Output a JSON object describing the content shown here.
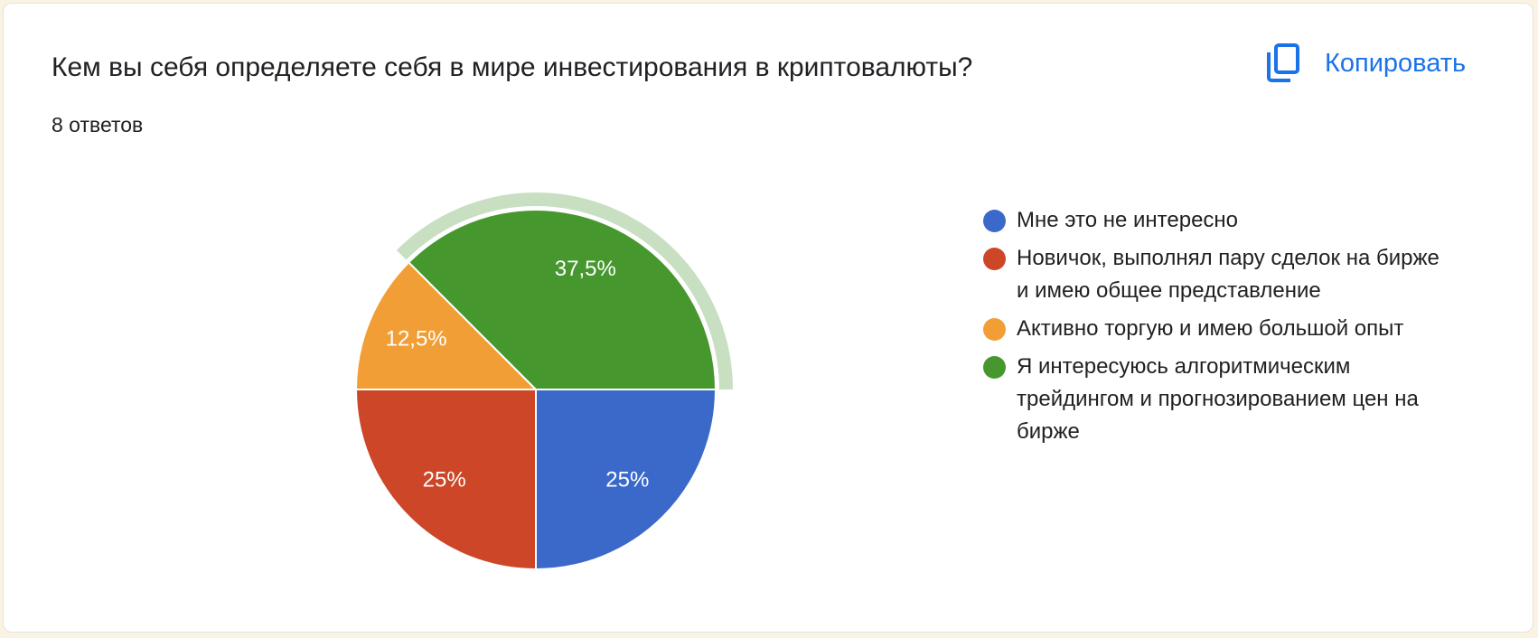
{
  "header": {
    "title": "Кем вы себя определяете себя в мире инвестирования в криптовалюты?",
    "subtitle": "8 ответов",
    "copy_button": "Копировать"
  },
  "chart_data": {
    "type": "pie",
    "categories": [
      "Мне это не интересно",
      "Новичок, выполнял пару сделок на бирже и имею общее представление",
      "Активно торгую и имею большой опыт",
      "Я интересуюсь алгоритмическим трейдингом и прогнозированием цен на бирже"
    ],
    "values": [
      25,
      25,
      12.5,
      37.5
    ],
    "value_labels": [
      "25%",
      "25%",
      "12,5%",
      "37,5%"
    ],
    "colors": [
      "#3b69c9",
      "#cc4627",
      "#f29e37",
      "#47972f"
    ]
  }
}
